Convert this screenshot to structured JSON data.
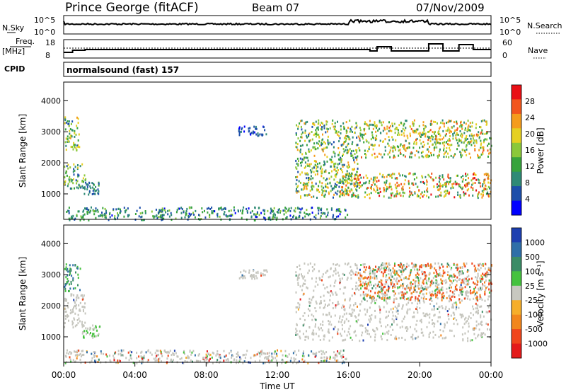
{
  "header": {
    "station": "Prince George (fitACF)",
    "beam": "Beam 07",
    "date": "07/Nov/2009"
  },
  "noise_panel": {
    "left_label": "N.Sky",
    "right_label": "N.Search",
    "left_ticks": [
      "10^5",
      "10^0"
    ],
    "right_ticks": [
      "10^5",
      "10^0"
    ]
  },
  "freq_panel": {
    "left_label_1": "Freq.",
    "left_label_2": "[MHz]",
    "right_label": "Nave",
    "left_ticks": [
      "18",
      "8"
    ],
    "right_ticks": [
      "60",
      "0"
    ]
  },
  "cpid": {
    "label": "CPID",
    "value": "normalsound (fast) 157"
  },
  "time_axis": {
    "label": "Time UT",
    "ticks": [
      "00:00",
      "04:00",
      "08:00",
      "12:00",
      "16:00",
      "20:00",
      "00:00"
    ]
  },
  "colors": {
    "power": [
      "#0000ff",
      "#1d4faa",
      "#2f8a76",
      "#37a33c",
      "#8bc83a",
      "#e6d021",
      "#f59c1c",
      "#f2561d",
      "#e90f15"
    ],
    "velocity": [
      "#1d3fb0",
      "#2f6fa8",
      "#3b8c66",
      "#45c23e",
      "#c8c8c0",
      "#f6ae2a",
      "#f2861c",
      "#f0461c",
      "#e41a1a"
    ],
    "grey": "#c5c5bd"
  },
  "chart_data": [
    {
      "type": "heatmap",
      "name": "power-panel",
      "ylabel": "Slant Range [km]",
      "xlabel": "Time UT",
      "xlim": [
        0,
        24
      ],
      "ylim": [
        180,
        4600
      ],
      "yticks": [
        "1000",
        "2000",
        "3000",
        "4000"
      ],
      "ytick_values": [
        1000,
        2000,
        3000,
        4000
      ],
      "colorbar": {
        "label": "Power [dB]",
        "range": [
          0,
          32
        ],
        "ticks": [
          "4",
          "8",
          "12",
          "16",
          "20",
          "24",
          "28"
        ],
        "tick_values": [
          4,
          8,
          12,
          16,
          20,
          24,
          28
        ]
      },
      "regions": [
        {
          "t0": 0.0,
          "t1": 0.9,
          "r0": 2400,
          "r1": 3500,
          "v0": 6,
          "v1": 22
        },
        {
          "t0": 0.0,
          "t1": 1.2,
          "r0": 1200,
          "r1": 2000,
          "v0": 5,
          "v1": 20
        },
        {
          "t0": 1.0,
          "t1": 2.0,
          "r0": 1000,
          "r1": 1400,
          "v0": 4,
          "v1": 12
        },
        {
          "t0": 9.8,
          "t1": 11.4,
          "r0": 2900,
          "r1": 3200,
          "v0": 3,
          "v1": 8
        },
        {
          "t0": 13.0,
          "t1": 16.5,
          "r0": 900,
          "r1": 3400,
          "v0": 5,
          "v1": 24
        },
        {
          "t0": 15.5,
          "t1": 24.0,
          "r0": 900,
          "r1": 1700,
          "v0": 8,
          "v1": 30
        },
        {
          "t0": 16.5,
          "t1": 24.0,
          "r0": 2200,
          "r1": 3400,
          "v0": 8,
          "v1": 26
        },
        {
          "t0": 0.0,
          "t1": 16.0,
          "r0": 180,
          "r1": 600,
          "v0": 3,
          "v1": 16
        }
      ]
    },
    {
      "type": "heatmap",
      "name": "velocity-panel",
      "ylabel": "Slant Range [km]",
      "xlabel": "Time UT",
      "xlim": [
        0,
        24
      ],
      "ylim": [
        180,
        4600
      ],
      "yticks": [
        "1000",
        "2000",
        "3000",
        "4000"
      ],
      "ytick_values": [
        1000,
        2000,
        3000,
        4000
      ],
      "colorbar": {
        "label": "Velocity [m s⁻¹]",
        "ticks": [
          "1000",
          "500",
          "100",
          "25",
          "-25",
          "-100",
          "-500",
          "-1000"
        ],
        "tick_values": [
          1000,
          500,
          100,
          25,
          -25,
          -100,
          -500,
          -1000
        ]
      },
      "regions": [
        {
          "t0": 0.0,
          "t1": 0.9,
          "r0": 2500,
          "r1": 3400,
          "kind": "positive"
        },
        {
          "t0": 0.0,
          "t1": 1.2,
          "r0": 1300,
          "r1": 2400,
          "kind": "ground"
        },
        {
          "t0": 1.0,
          "t1": 2.0,
          "r0": 1000,
          "r1": 1400,
          "kind": "green"
        },
        {
          "t0": 9.8,
          "t1": 11.4,
          "r0": 2900,
          "r1": 3200,
          "kind": "ground"
        },
        {
          "t0": 13.0,
          "t1": 24.0,
          "r0": 900,
          "r1": 3400,
          "kind": "ground"
        },
        {
          "t0": 16.5,
          "t1": 24.0,
          "r0": 2200,
          "r1": 3400,
          "kind": "negative"
        },
        {
          "t0": 0.0,
          "t1": 16.0,
          "r0": 180,
          "r1": 600,
          "kind": "mixed"
        }
      ]
    }
  ]
}
